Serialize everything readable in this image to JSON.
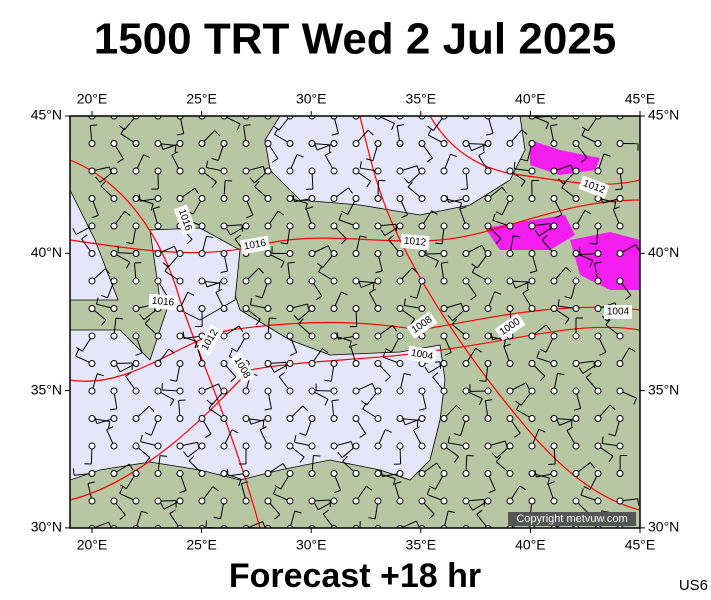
{
  "header": {
    "title": "1500 TRT Wed 2 Jul 2025"
  },
  "map": {
    "lon_labels": [
      "20°E",
      "25°E",
      "30°E",
      "35°E",
      "40°E",
      "45°E"
    ],
    "lat_labels": [
      "45°N",
      "40°N",
      "35°N",
      "30°N"
    ],
    "isobar_labels": [
      "1016",
      "1016",
      "1012",
      "1016",
      "1012",
      "1008",
      "1008",
      "1004",
      "1000",
      "1012",
      "1004"
    ],
    "copyright": "Copyright metvuw.com"
  },
  "footer": {
    "forecast": "Forecast +18 hr",
    "code": "US6"
  }
}
